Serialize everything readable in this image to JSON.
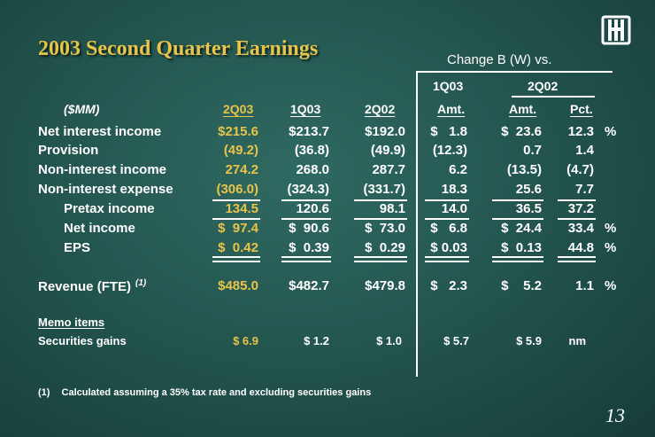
{
  "title": "2003 Second Quarter Earnings",
  "logo": "logo-icon",
  "change_header": "Change B (W) vs.",
  "group_headers": {
    "g1": "1Q03",
    "g2": "2Q02"
  },
  "units": "($MM)",
  "columns": [
    "2Q03",
    "1Q03",
    "2Q02",
    "Amt.",
    "Amt.",
    "Pct."
  ],
  "rows": [
    {
      "label": "Net interest income",
      "values": [
        "$215.6",
        "$213.7",
        "$192.0",
        "$   1.8",
        "$  23.6",
        "12.3"
      ],
      "suffix": "%"
    },
    {
      "label": "Provision",
      "values": [
        "(49.2)",
        "(36.8)",
        "(49.9)",
        "(12.3)",
        "0.7",
        "1.4"
      ],
      "suffix": ""
    },
    {
      "label": "Non-interest income",
      "values": [
        "274.2",
        "268.0",
        "287.7",
        "6.2",
        "(13.5)",
        "(4.7)"
      ],
      "suffix": ""
    },
    {
      "label": "Non-interest expense",
      "values": [
        "(306.0)",
        "(324.3)",
        "(331.7)",
        "18.3",
        "25.6",
        "7.7"
      ],
      "suffix": ""
    },
    {
      "label": "Pretax income",
      "values": [
        "134.5",
        "120.6",
        "98.1",
        "14.0",
        "36.5",
        "37.2"
      ],
      "suffix": ""
    },
    {
      "label": "Net income",
      "values": [
        "$  97.4",
        "$  90.6",
        "$  73.0",
        "$   6.8",
        "$  24.4",
        "33.4"
      ],
      "suffix": "%"
    },
    {
      "label": "EPS",
      "values": [
        "$  0.42",
        "$  0.39",
        "$  0.29",
        "$ 0.03",
        "$  0.13",
        "44.8"
      ],
      "suffix": "%"
    },
    {
      "label": "Revenue (FTE)",
      "sup": "(1)",
      "values": [
        "$485.0",
        "$482.7",
        "$479.8",
        "$   2.3",
        "$    5.2",
        "1.1"
      ],
      "suffix": "%"
    }
  ],
  "memo": {
    "heading": "Memo items",
    "label": "Securities gains",
    "values": [
      "$ 6.9",
      "$ 1.2",
      "$ 1.0",
      "$ 5.7",
      "$ 5.9",
      "nm"
    ]
  },
  "footnote": {
    "marker": "(1)",
    "text": "Calculated assuming a 35% tax rate and excluding securities gains"
  },
  "page_number": "13",
  "colors": {
    "accent": "#e8c44a",
    "background": "#245650",
    "text": "#ffffff"
  }
}
